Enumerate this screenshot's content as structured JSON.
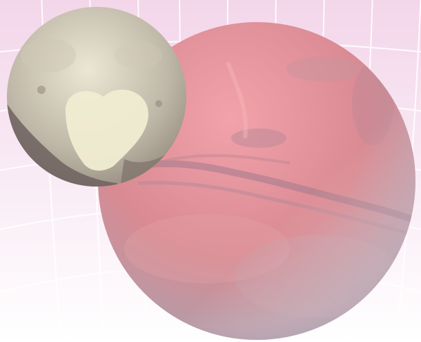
{
  "scene": {
    "background_top": "#f3d6ea",
    "background_bottom": "#ffffff",
    "grid_color": "#ffffff",
    "mars": {
      "light": "#f2a2aa",
      "mid": "#d98a92",
      "dark": "#9a8a9e",
      "terminator": "#b0aebc"
    },
    "pluto": {
      "light": "#ece6d4",
      "mid": "#bfb8a8",
      "dark": "#6f6260",
      "heart": "#f0ecd2"
    }
  }
}
